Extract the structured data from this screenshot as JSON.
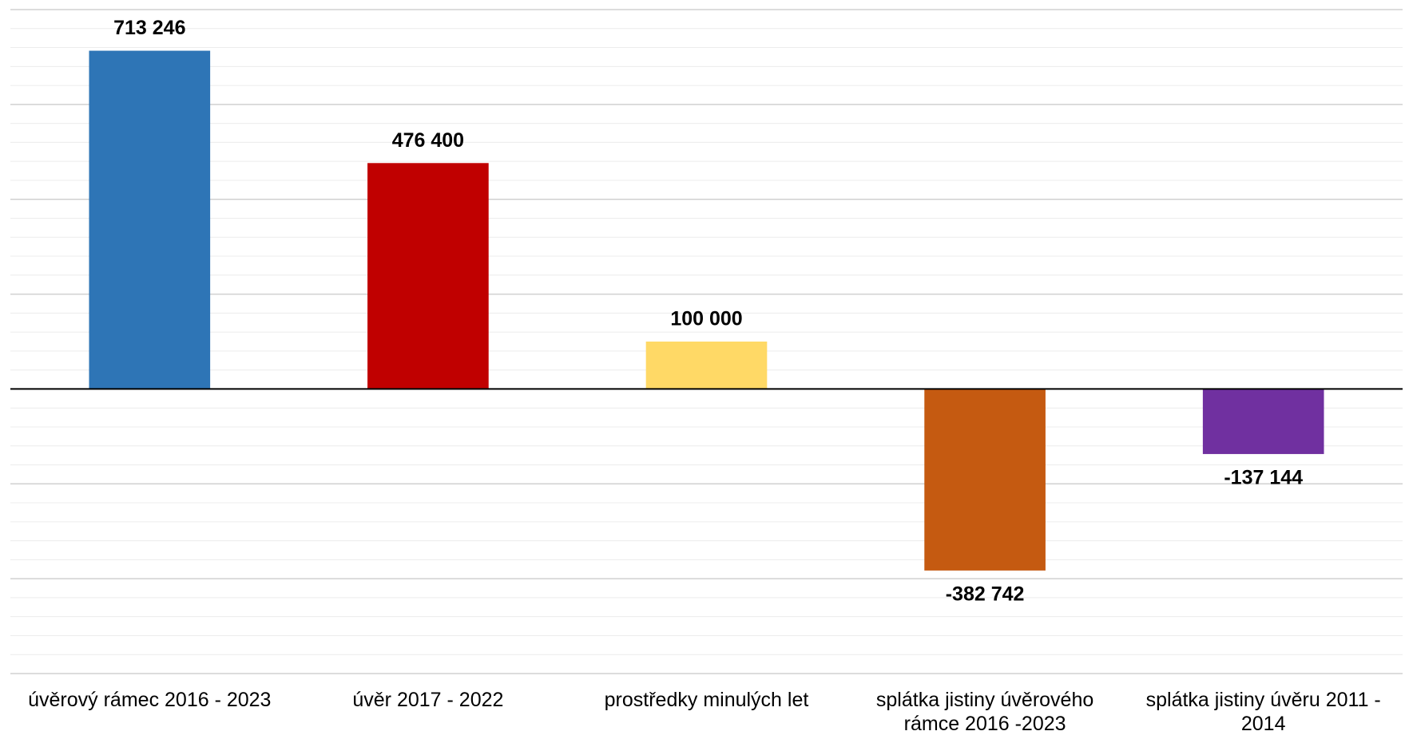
{
  "chart_data": {
    "type": "bar",
    "categories": [
      "úvěrový rámec 2016 - 2023",
      "úvěr 2017 - 2022",
      "prostředky minulých let",
      "splátka jistiny úvěrového rámce 2016 -2023",
      "splátka jistiny úvěru 2011 - 2014"
    ],
    "values": [
      713246,
      476400,
      100000,
      -382742,
      -137144
    ],
    "value_labels": [
      "713 246",
      "476 400",
      "100 000",
      "-382 742",
      "-137 144"
    ],
    "colors": [
      "#2e75b6",
      "#c00000",
      "#ffd966",
      "#c55a11",
      "#7030a0"
    ],
    "ylim": [
      -600000,
      800000
    ],
    "yticks": [
      -600000,
      -400000,
      -200000,
      0,
      200000,
      400000,
      600000,
      800000
    ],
    "minor_yticks": [
      -560000,
      -520000,
      -480000,
      -440000,
      -360000,
      -320000,
      -280000,
      -240000,
      -160000,
      -120000,
      -80000,
      -40000,
      40000,
      80000,
      120000,
      160000,
      240000,
      280000,
      320000,
      360000,
      440000,
      480000,
      520000,
      560000,
      640000,
      680000,
      720000,
      760000
    ],
    "grid": true
  }
}
